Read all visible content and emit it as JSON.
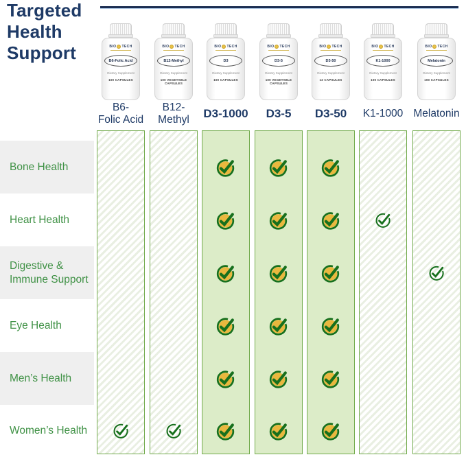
{
  "title": "Targeted Health Support",
  "brand": {
    "name_left": "BIO",
    "name_right": "TECH"
  },
  "products": [
    {
      "label_line1": "B6-",
      "label_line2": "Folic Acid",
      "bottle_name": "B6-Folic Acid",
      "bottle_sub": "Dietary Supplement",
      "bottle_count": "100 CAPSULES",
      "highlighted": false
    },
    {
      "label_line1": "B12-",
      "label_line2": "Methyl",
      "bottle_name": "B12-Methyl",
      "bottle_sub": "Dietary Supplement",
      "bottle_count": "100 VEGETABLE CAPSULES",
      "highlighted": false
    },
    {
      "label_line1": "D3-1000",
      "label_line2": "",
      "bottle_name": "D3",
      "bottle_sub": "Dietary Supplement",
      "bottle_count": "100 CAPSULES",
      "highlighted": true
    },
    {
      "label_line1": "D3-5",
      "label_line2": "",
      "bottle_name": "D3-5",
      "bottle_sub": "Dietary Supplement",
      "bottle_count": "100 VEGETABLE CAPSULES",
      "highlighted": true
    },
    {
      "label_line1": "D3-50",
      "label_line2": "",
      "bottle_name": "D3-50",
      "bottle_sub": "Dietary Supplement",
      "bottle_count": "12 CAPSULES",
      "highlighted": true
    },
    {
      "label_line1": "K1-1000",
      "label_line2": "",
      "bottle_name": "K1-1000",
      "bottle_sub": "Dietary Supplement",
      "bottle_count": "100 CAPSULES",
      "highlighted": false
    },
    {
      "label_line1": "Melatonin",
      "label_line2": "",
      "bottle_name": "Melatonin",
      "bottle_sub": "Dietary Supplement",
      "bottle_count": "100 CAPSULES",
      "highlighted": false
    }
  ],
  "table": {
    "rows": [
      {
        "label": "Bone Health",
        "checks": [
          "",
          "",
          "filled",
          "filled",
          "filled",
          "",
          ""
        ]
      },
      {
        "label": "Heart Health",
        "checks": [
          "",
          "",
          "filled",
          "filled",
          "filled",
          "outline",
          ""
        ]
      },
      {
        "label": "Digestive & Immune Support",
        "checks": [
          "",
          "",
          "filled",
          "filled",
          "filled",
          "",
          "outline"
        ]
      },
      {
        "label": "Eye Health",
        "checks": [
          "",
          "",
          "filled",
          "filled",
          "filled",
          "",
          ""
        ]
      },
      {
        "label": "Men’s Health",
        "checks": [
          "",
          "",
          "filled",
          "filled",
          "filled",
          "",
          ""
        ]
      },
      {
        "label": "Women’s Health",
        "checks": [
          "outline",
          "outline",
          "filled",
          "filled",
          "filled",
          "",
          ""
        ]
      }
    ]
  },
  "colors": {
    "accent_navy": "#1e3a66",
    "rule_navy": "#1c2e52",
    "label_green": "#3f9145",
    "check_green": "#17701d",
    "check_gold": "#e9b83e",
    "column_green": "#dcecc8",
    "column_border": "#71aa4b",
    "row_stripe": "#efefef"
  }
}
